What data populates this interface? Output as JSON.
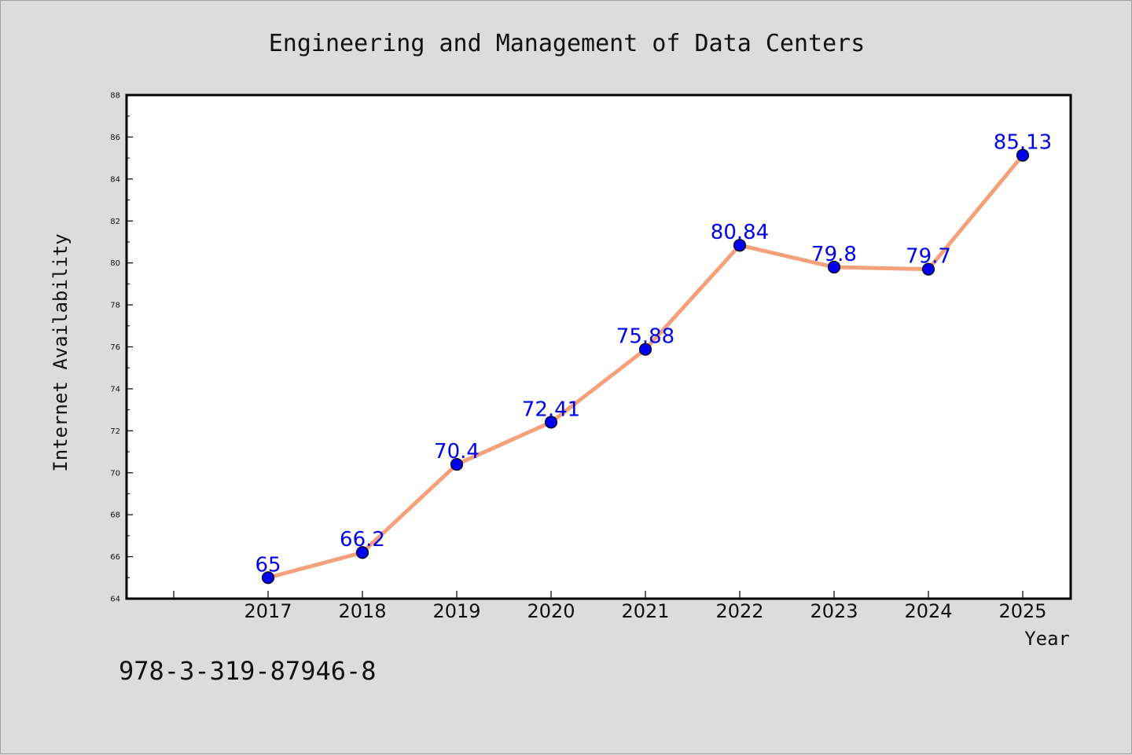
{
  "isbn": "978-3-319-87946-8",
  "chart_data": {
    "type": "line",
    "title": "Engineering and Management of Data Centers",
    "xlabel": "Year",
    "ylabel": "Internet Availability",
    "categories": [
      "2017",
      "2018",
      "2019",
      "2020",
      "2021",
      "2022",
      "2023",
      "2024",
      "2025"
    ],
    "series": [
      {
        "values": [
          65,
          66.2,
          70.4,
          72.41,
          75.88,
          80.84,
          79.8,
          79.7,
          85.13
        ],
        "labels": [
          "65",
          "66.2",
          "70.4",
          "72.41",
          "75.88",
          "80.84",
          "79.8",
          "79.7",
          "85.13"
        ]
      }
    ],
    "ylim": [
      64,
      88
    ],
    "yticks": [
      "64",
      "66",
      "68",
      "70",
      "72",
      "74",
      "76",
      "78",
      "80",
      "82",
      "84",
      "86",
      "88"
    ],
    "grid": false,
    "colors": {
      "line": "#f4a07a",
      "marker": "#0000ee",
      "marker_edge": "#000000",
      "label": "#0000ee",
      "plot_bg": "#ffffff",
      "figure_bg": "#dcdcdc"
    }
  }
}
